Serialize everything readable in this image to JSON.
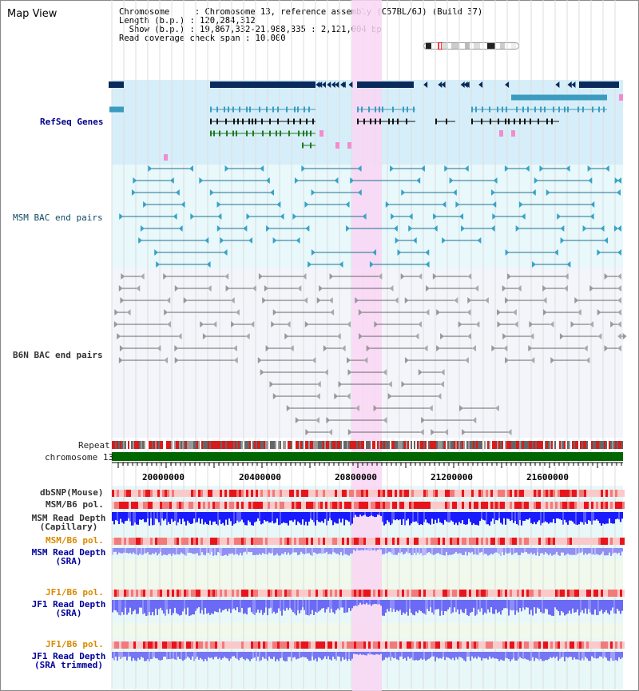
{
  "header": {
    "title": "Map View",
    "info_lines": [
      "Chromosome     : Chromosome 13, reference assembly (C57BL/6J) (Build 37)",
      "Length (b.p.) : 120,284,312",
      "  Show (b.p.) : 19,867,332-21,988,335 : 2,121,004 bp",
      "Read coverage check span : 10,000"
    ]
  },
  "tracks": {
    "refseq": "RefSeq Genes",
    "msm_bac": "MSM BAC end pairs",
    "b6n_bac": "B6N BAC end pairs",
    "repeat": "Repeat",
    "chromosome": "chromosome 13",
    "dbsnp": "dbSNP(Mouse)",
    "msm_b6_pol": "MSM/B6 pol.",
    "msm_depth_cap_1": "MSM Read Depth",
    "msm_depth_cap_2": "(Capillary)",
    "msm_b6_pol_2": "MSM/B6 pol.",
    "msm_depth_sra_1": "MSM Read Depth",
    "msm_depth_sra_2": "(SRA)",
    "jf1_b6_pol": "JF1/B6 pol.",
    "jf1_depth_sra_1": "JF1 Read Depth",
    "jf1_depth_sra_2": "(SRA)",
    "jf1_b6_pol_2": "JF1/B6 pol.",
    "jf1_depth_trim_1": "JF1 Read Depth",
    "jf1_depth_trim_2": "(SRA trimmed)"
  },
  "axis": {
    "ticks": [
      "20000000",
      "20400000",
      "20800000",
      "21200000",
      "21600000"
    ]
  },
  "colors": {
    "highlight": "#f9d6f5",
    "refseq_bg": "#d6eef9",
    "track_bg": "#e8f8fb",
    "gene_dark": "#0a2a5c",
    "gene_teal": "#3b9cc0",
    "gene_green": "#1f7a1f",
    "chrom": "#006600",
    "snp": "#ef3a3a",
    "depth": "#2a2aff",
    "depth_light": "#8080ff"
  }
}
